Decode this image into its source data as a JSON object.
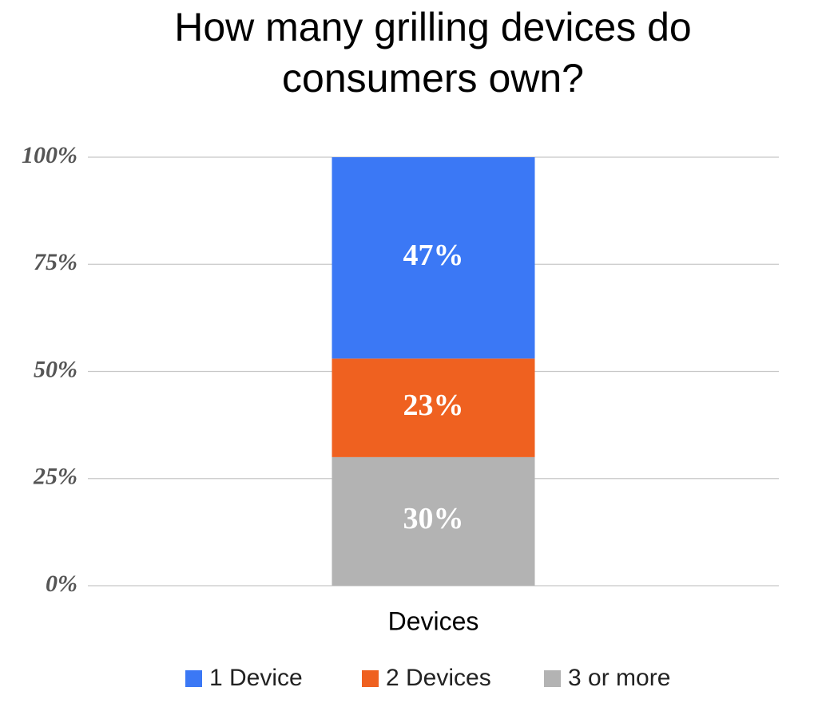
{
  "chart_data": {
    "type": "stacked_bar",
    "title": "How many grilling devices do consumers own?",
    "categories": [
      "Devices"
    ],
    "series": [
      {
        "name": "1 Device",
        "color": "#3b78f5",
        "values": [
          47
        ],
        "value_labels": [
          "47%"
        ]
      },
      {
        "name": "2 Devices",
        "color": "#ef6120",
        "values": [
          23
        ],
        "value_labels": [
          "23%"
        ]
      },
      {
        "name": "3 or more",
        "color": "#b3b3b3",
        "values": [
          30
        ],
        "value_labels": [
          "30%"
        ]
      }
    ],
    "ylim": [
      0,
      100
    ],
    "yticks": [
      {
        "value": 0,
        "label": "0%"
      },
      {
        "value": 25,
        "label": "25%"
      },
      {
        "value": 50,
        "label": "50%"
      },
      {
        "value": 75,
        "label": "75%"
      },
      {
        "value": 100,
        "label": "100%"
      }
    ],
    "grid": true,
    "legend": "bottom"
  }
}
